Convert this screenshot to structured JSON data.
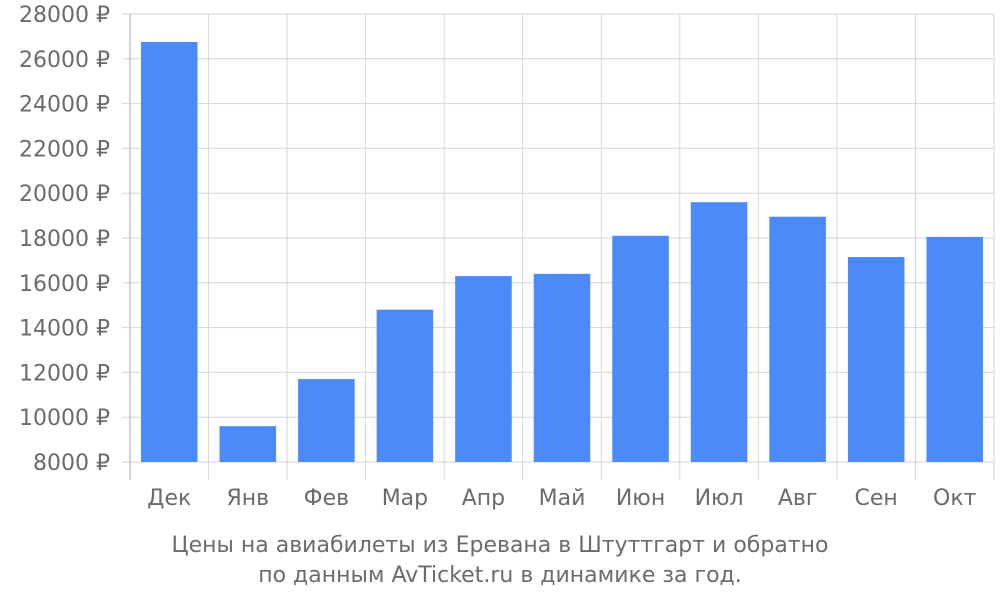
{
  "chart_data": {
    "type": "bar",
    "categories": [
      "Дек",
      "Янв",
      "Фев",
      "Мар",
      "Апр",
      "Май",
      "Июн",
      "Июл",
      "Авг",
      "Сен",
      "Окт"
    ],
    "values": [
      26750,
      9600,
      11700,
      14800,
      16300,
      16400,
      18100,
      19600,
      18950,
      17150,
      18050
    ],
    "ylim": [
      8000,
      28000
    ],
    "y_ticks": [
      "8000 ₽",
      "10000 ₽",
      "12000 ₽",
      "14000 ₽",
      "16000 ₽",
      "18000 ₽",
      "20000 ₽",
      "22000 ₽",
      "24000 ₽",
      "26000 ₽",
      "28000 ₽"
    ],
    "grid": true,
    "bar_color": "#4d8af9",
    "caption_line1": "Цены на авиабилеты из Еревана в Штуттгарт и обратно",
    "caption_line2": "по данным AvTicket.ru в динамике за год."
  }
}
